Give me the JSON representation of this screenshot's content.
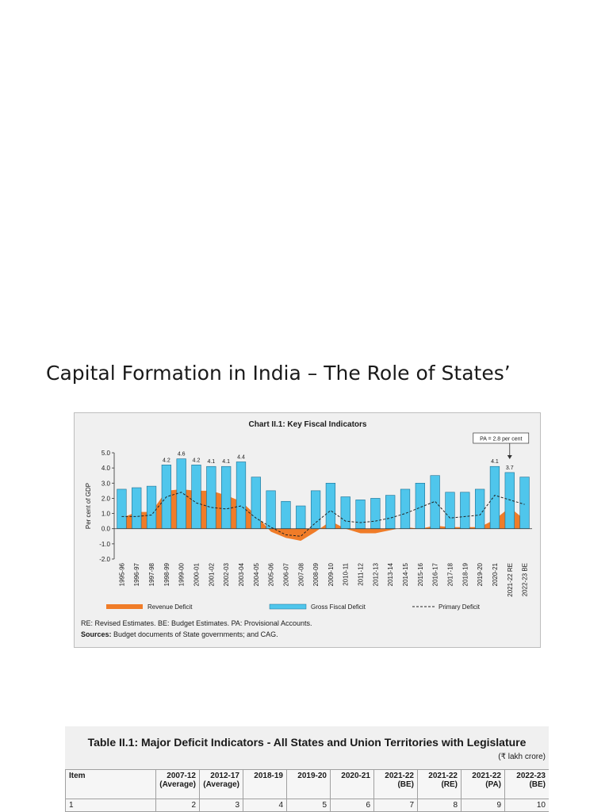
{
  "slide": {
    "title": "Capital Formation in India – The Role of States’"
  },
  "chart_data": {
    "type": "bar",
    "title": "Chart II.1: Key Fiscal Indicators",
    "ylabel": "Per cent of GDP",
    "ylim": [
      -2.0,
      5.0
    ],
    "yticks": [
      "5.0",
      "4.0",
      "3.0",
      "2.0",
      "1.0",
      "0.0",
      "-1.0",
      "-2.0"
    ],
    "categories": [
      "1995-96",
      "1996-97",
      "1997-98",
      "1998-99",
      "1999-00",
      "2000-01",
      "2001-02",
      "2002-03",
      "2003-04",
      "2004-05",
      "2005-06",
      "2006-07",
      "2007-08",
      "2008-09",
      "2009-10",
      "2010-11",
      "2011-12",
      "2012-13",
      "2013-14",
      "2014-15",
      "2015-16",
      "2016-17",
      "2017-18",
      "2018-19",
      "2019-20",
      "2020-21",
      "2021-22 RE",
      "2022-23 BE"
    ],
    "series": [
      {
        "name": "Revenue Deficit",
        "type": "area",
        "color": "#f07c28",
        "values": [
          0.7,
          1.1,
          1.1,
          2.5,
          2.6,
          2.5,
          2.5,
          2.2,
          1.8,
          0.9,
          -0.2,
          -0.6,
          -0.8,
          -0.2,
          0.5,
          0.0,
          -0.3,
          -0.3,
          -0.1,
          0.1,
          0.0,
          0.2,
          0.1,
          0.1,
          0.1,
          0.6,
          1.4,
          0.6
        ]
      },
      {
        "name": "Gross Fiscal Deficit",
        "type": "bar",
        "color": "#4fc6ec",
        "values": [
          2.6,
          2.7,
          2.8,
          4.2,
          4.6,
          4.2,
          4.1,
          4.1,
          4.4,
          3.4,
          2.5,
          1.8,
          1.5,
          2.5,
          3.0,
          2.1,
          1.9,
          2.0,
          2.2,
          2.6,
          3.0,
          3.5,
          2.4,
          2.4,
          2.6,
          4.1,
          3.7,
          3.4
        ]
      },
      {
        "name": "Primary Deficit",
        "type": "line",
        "dash": true,
        "color": "#222222",
        "values": [
          0.8,
          0.8,
          0.9,
          2.1,
          2.4,
          1.7,
          1.4,
          1.3,
          1.5,
          0.7,
          0.1,
          -0.4,
          -0.5,
          0.4,
          1.2,
          0.5,
          0.4,
          0.5,
          0.7,
          1.0,
          1.4,
          1.8,
          0.7,
          0.8,
          0.9,
          2.2,
          1.9,
          1.6
        ]
      }
    ],
    "data_labels": [
      {
        "category": "1998-99",
        "text": "4.2"
      },
      {
        "category": "1999-00",
        "text": "4.6"
      },
      {
        "category": "2000-01",
        "text": "4.2"
      },
      {
        "category": "2001-02",
        "text": "4.1"
      },
      {
        "category": "2002-03",
        "text": "4.1"
      },
      {
        "category": "2003-04",
        "text": "4.4"
      },
      {
        "category": "2020-21",
        "text": "4.1"
      },
      {
        "category": "2021-22 RE",
        "text": "3.7"
      }
    ],
    "annotation": {
      "category": "2021-22 RE",
      "text": "PA = 2.8 per cent"
    },
    "legend_placement": "bottom",
    "grid": false
  },
  "notes": {
    "abbrev": "RE: Revised Estimates. BE: Budget Estimates. PA: Provisional Accounts.",
    "sources_label": "Sources:",
    "sources_text": " Budget documents of State governments; and CAG."
  },
  "table": {
    "title": "Table II.1: Major Deficit Indicators - All States and Union Territories with Legislature",
    "unit": "(₹ lakh crore)",
    "headers": [
      {
        "line1": "Item",
        "line2": ""
      },
      {
        "line1": "2007-12",
        "line2": "(Average)"
      },
      {
        "line1": "2012-17",
        "line2": "(Average)"
      },
      {
        "line1": "2018-19",
        "line2": ""
      },
      {
        "line1": "2019-20",
        "line2": ""
      },
      {
        "line1": "2020-21",
        "line2": ""
      },
      {
        "line1": "2021-22",
        "line2": "(BE)"
      },
      {
        "line1": "2021-22",
        "line2": "(RE)"
      },
      {
        "line1": "2021-22",
        "line2": "(PA)"
      },
      {
        "line1": "2022-23",
        "line2": "(BE)"
      }
    ],
    "row1": [
      "1",
      "2",
      "3",
      "4",
      "5",
      "6",
      "7",
      "8",
      "9",
      "10"
    ]
  }
}
